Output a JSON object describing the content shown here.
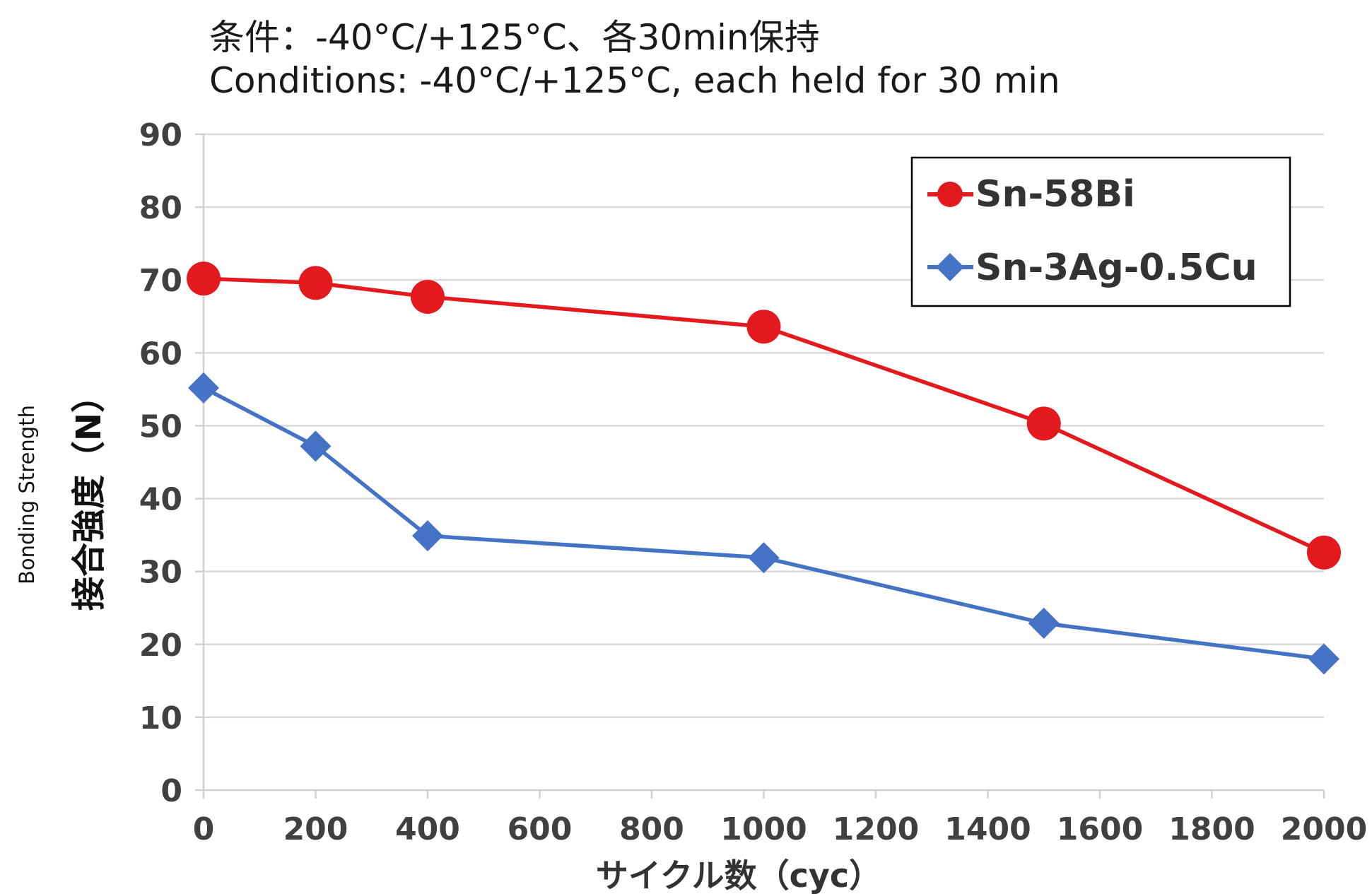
{
  "conditions": {
    "line_ja": "条件：-40°C/+125°C、各30min保持",
    "line_en": "Conditions: -40°C/+125°C, each held for 30 min"
  },
  "chart_data": {
    "type": "line",
    "x": [
      0,
      200,
      400,
      1000,
      1500,
      2000
    ],
    "series": [
      {
        "name": "Sn-58Bi",
        "values": [
          70.2,
          69.6,
          67.7,
          63.6,
          50.3,
          32.6
        ],
        "color": "#e3191d",
        "marker": "circle"
      },
      {
        "name": "Sn-3Ag-0.5Cu",
        "values": [
          55.2,
          47.2,
          34.9,
          31.9,
          22.9,
          18.0
        ],
        "color": "#4472c4",
        "marker": "diamond"
      }
    ],
    "xlabel": "サイクル数（cyc）",
    "ylabel": "接合強度（N）",
    "ylabel_en": "Bonding Strength",
    "xlim": [
      0,
      2000
    ],
    "ylim": [
      0,
      90
    ],
    "xticks": [
      0,
      200,
      400,
      600,
      800,
      1000,
      1200,
      1400,
      1600,
      1800,
      2000
    ],
    "yticks": [
      0,
      10,
      20,
      30,
      40,
      50,
      60,
      70,
      80,
      90
    ],
    "grid": "horizontal",
    "legend_position": "top-right"
  }
}
